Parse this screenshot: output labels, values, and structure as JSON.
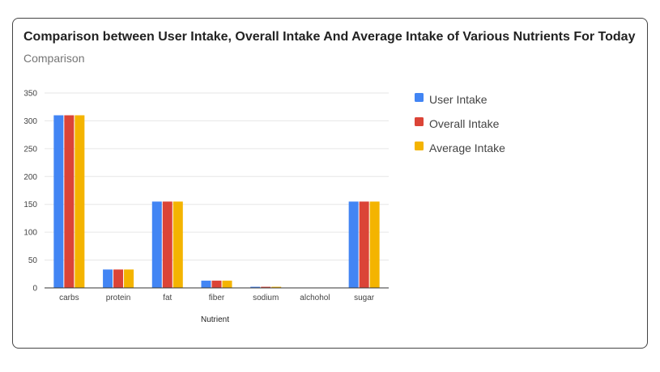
{
  "chart_data": {
    "type": "bar",
    "title": "Comparison between User Intake, Overall Intake And Average Intake of Various Nutrients For Today",
    "subtitle": "Comparison",
    "xlabel": "Nutrient",
    "ylabel": "",
    "ylim": [
      0,
      350
    ],
    "yticks": [
      "0",
      "50",
      "100",
      "150",
      "200",
      "250",
      "300",
      "350"
    ],
    "grid": true,
    "legend_position": "right",
    "categories": [
      "carbs",
      "protein",
      "fat",
      "fiber",
      "sodium",
      "alchohol",
      "sugar"
    ],
    "series": [
      {
        "name": "User Intake",
        "color": "#4285F4",
        "values": [
          310,
          33,
          155,
          13,
          2,
          0,
          155
        ]
      },
      {
        "name": "Overall Intake",
        "color": "#DB4437",
        "values": [
          310,
          33,
          155,
          13,
          2,
          0,
          155
        ]
      },
      {
        "name": "Average Intake",
        "color": "#F4B400",
        "values": [
          310,
          33,
          155,
          13,
          2,
          0,
          155
        ]
      }
    ]
  }
}
